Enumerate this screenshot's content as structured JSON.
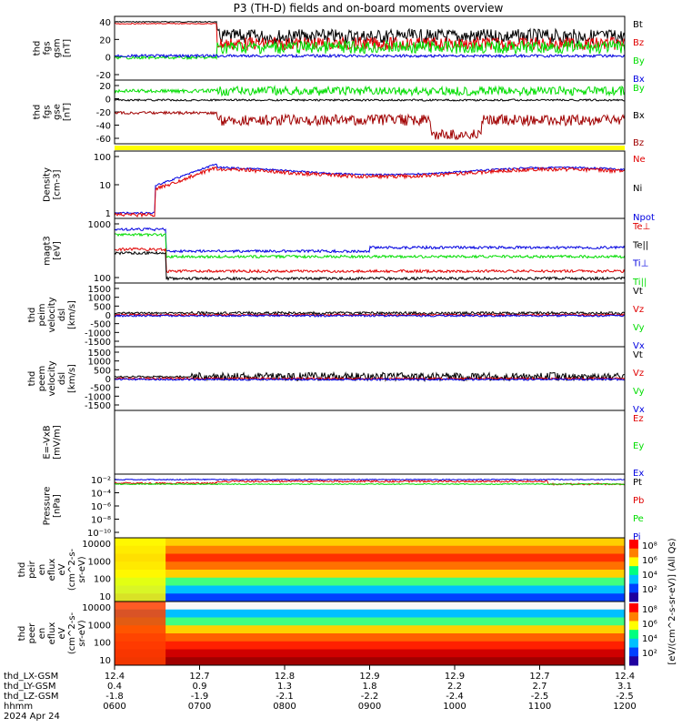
{
  "title": "P3 (TH-D) fields and on-board moments overview",
  "colors": {
    "black": "#000000",
    "red": "#e00000",
    "green": "#00dd00",
    "blue": "#0000e0",
    "darkred": "#a00000",
    "yellow": "#ffff00"
  },
  "chart_data": {
    "type": "line",
    "time_axis": {
      "ticks": [
        "0600",
        "0700",
        "0800",
        "0900",
        "1000",
        "1100",
        "1200"
      ],
      "row_labels": [
        "thd_LX-GSM",
        "thd_LY-GSM",
        "thd_LZ-GSM",
        "hhmm",
        "2024 Apr 24"
      ],
      "lx": [
        "12.4",
        "12.7",
        "12.8",
        "12.9",
        "12.9",
        "12.7",
        "12.4"
      ],
      "ly": [
        "0.4",
        "0.9",
        "1.3",
        "1.8",
        "2.2",
        "2.7",
        "3.1"
      ],
      "lz": [
        "-1.8",
        "-1.9",
        "-2.1",
        "-2.2",
        "-2.4",
        "-2.5",
        "-2.5"
      ],
      "date": "2024 Apr 24"
    },
    "panels": [
      {
        "id": "fgs_gsm",
        "ylabel": [
          "thd",
          "fgs",
          "gsm",
          "[nT]"
        ],
        "ylim": [
          -20,
          45
        ],
        "yticks": [
          "40",
          "20",
          "0",
          "-20"
        ],
        "series": [
          {
            "name": "Bt",
            "color": "black"
          },
          {
            "name": "Bz",
            "color": "red"
          },
          {
            "name": "By",
            "color": "green"
          },
          {
            "name": "Bx",
            "color": "blue"
          }
        ]
      },
      {
        "id": "fgs_gsm2",
        "ylabel": [
          "thd",
          "fgs",
          "gse",
          "[nT]"
        ],
        "ylim": [
          -75,
          28
        ],
        "yticks": [
          "20",
          "0",
          "-20",
          "-40",
          "-60"
        ],
        "series": [
          {
            "name": "By",
            "color": "green"
          },
          {
            "name": "Bx",
            "color": "black"
          },
          {
            "name": "Bz",
            "color": "darkred"
          }
        ]
      },
      {
        "id": "density",
        "ylabel": [
          "Density",
          "[cm-3]"
        ],
        "ylim_log": [
          0.35,
          140
        ],
        "yticks": [
          "100",
          "10",
          "1"
        ],
        "series": [
          {
            "name": "Ne",
            "color": "red"
          },
          {
            "name": "Ni",
            "color": "black"
          },
          {
            "name": "Npot",
            "color": "blue"
          }
        ]
      },
      {
        "id": "temp",
        "ylabel": [
          "magt3",
          "[eV]"
        ],
        "ylim_log": [
          35,
          2600
        ],
        "yticks": [
          "1000",
          "100"
        ],
        "series": [
          {
            "name": "Te⊥",
            "color": "red"
          },
          {
            "name": "Te||",
            "color": "black"
          },
          {
            "name": "Ti⊥",
            "color": "blue"
          },
          {
            "name": "Ti||",
            "color": "green"
          }
        ]
      },
      {
        "id": "peim_vel",
        "ylabel": [
          "thd",
          "peim",
          "velocity",
          "dsl",
          "[km/s]"
        ],
        "ylim": [
          -1500,
          1500
        ],
        "yticks": [
          "1500",
          "1000",
          "500",
          "0",
          "-500",
          "-1000",
          "-1500"
        ],
        "series": [
          {
            "name": "Vt",
            "color": "black"
          },
          {
            "name": "Vz",
            "color": "red"
          },
          {
            "name": "Vy",
            "color": "green"
          },
          {
            "name": "Vx",
            "color": "blue"
          }
        ]
      },
      {
        "id": "peem_vel",
        "ylabel": [
          "thd",
          "peem",
          "velocity",
          "dsl",
          "[km/s]"
        ],
        "ylim": [
          -1500,
          1500
        ],
        "yticks": [
          "1500",
          "1000",
          "500",
          "0",
          "-500",
          "-1000",
          "-1500"
        ],
        "series": [
          {
            "name": "Vt",
            "color": "black"
          },
          {
            "name": "Vz",
            "color": "red"
          },
          {
            "name": "Vy",
            "color": "green"
          },
          {
            "name": "Vx",
            "color": "blue"
          }
        ]
      },
      {
        "id": "efield",
        "ylabel": [
          "E=-VxB",
          "[mV/m]"
        ],
        "yticks": [],
        "series": [
          {
            "name": "Ez",
            "color": "red"
          },
          {
            "name": "Ey",
            "color": "green"
          },
          {
            "name": "Ex",
            "color": "blue"
          }
        ]
      },
      {
        "id": "pressure",
        "ylabel": [
          "Pressure",
          "[nPa]"
        ],
        "yticks": [
          "10⁻²",
          "10⁻⁴",
          "10⁻⁶",
          "10⁻⁸",
          "10⁻¹⁰"
        ],
        "series": [
          {
            "name": "Pt",
            "color": "black"
          },
          {
            "name": "Pb",
            "color": "red"
          },
          {
            "name": "Pe",
            "color": "green"
          },
          {
            "name": "Pi",
            "color": "blue"
          }
        ]
      },
      {
        "id": "peir_spec",
        "ylabel": [
          "thd",
          "peir",
          "en",
          "eflux",
          "eV",
          "(cm^2-s-",
          "sr-eV)"
        ],
        "yticks": [
          "10000",
          "1000",
          "100",
          "10"
        ]
      },
      {
        "id": "peer_spec",
        "ylabel": [
          "thd",
          "peer",
          "en",
          "eflux",
          "eV",
          "(cm^2-s-",
          "sr-eV)"
        ],
        "yticks": [
          "10000",
          "1000",
          "100",
          "10"
        ]
      }
    ],
    "colorbar": {
      "label": "[eV/(cm^2-s-sr-eV)] (All Qs)",
      "ticks_top": [
        "10⁸",
        "10⁶",
        "10⁴",
        "10²"
      ],
      "ticks_bottom": [
        "10⁸",
        "10⁶",
        "10⁴",
        "10²"
      ]
    }
  }
}
